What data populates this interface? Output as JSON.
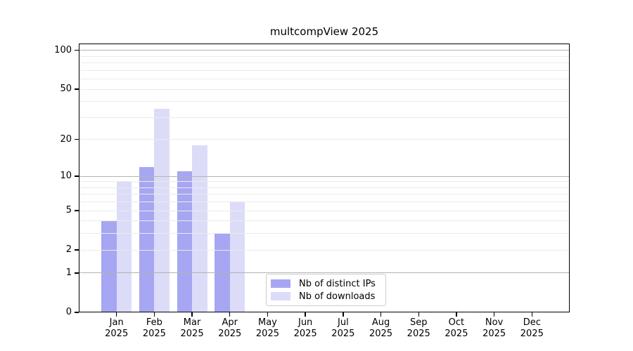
{
  "chart_data": {
    "type": "bar",
    "title": "multcompView 2025",
    "categories": [
      "Jan",
      "Feb",
      "Mar",
      "Apr",
      "May",
      "Jun",
      "Jul",
      "Aug",
      "Sep",
      "Oct",
      "Nov",
      "Dec"
    ],
    "x_year": "2025",
    "series": [
      {
        "name": "Nb of distinct IPs",
        "color": "#a6a6f2",
        "values": [
          4,
          12,
          11,
          3,
          0,
          0,
          0,
          0,
          0,
          0,
          0,
          0
        ]
      },
      {
        "name": "Nb of downloads",
        "color": "#dcdcf9",
        "values": [
          9,
          35,
          18,
          6,
          0,
          0,
          0,
          0,
          0,
          0,
          0,
          0
        ]
      }
    ],
    "yscale": "log1p",
    "ylim": [
      0,
      113
    ],
    "yticks": [
      0,
      1,
      2,
      5,
      10,
      20,
      50,
      100
    ],
    "grid_major": [
      1,
      10,
      100
    ],
    "grid_minor": [
      2,
      3,
      4,
      5,
      6,
      7,
      8,
      9,
      20,
      30,
      40,
      50,
      60,
      70,
      80,
      90
    ],
    "grid_on_top": true,
    "legend_position": "inside-bottom-center"
  },
  "colors": {
    "axis": "#000000",
    "grid_major": "#b3b3b3",
    "grid_minor": "#ebebeb",
    "legend_border": "#cccccc",
    "background": "#ffffff"
  }
}
